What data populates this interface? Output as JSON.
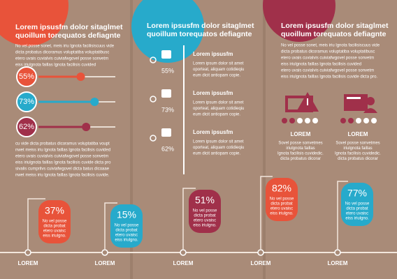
{
  "panel1": {
    "title": [
      "Lorem ipsusfm dolor sitaglmet",
      "quoillum torequatos defiagnte"
    ],
    "intro": [
      "No vel posse sonet, meis iriu lgnota facilisiscuus vide",
      "dicta probatus dicoramus voluptatiba voluptatibusc",
      "etero uvais cuvialvis cuiviafwgovel posse sonvetm",
      "eiss iriulgnota faillas lgnota facilisis cuvided"
    ],
    "sliders": [
      {
        "value": 55,
        "label": "55%"
      },
      {
        "value": 73,
        "label": "73%"
      },
      {
        "value": 62,
        "label": "62%"
      }
    ],
    "outro": [
      "cu vide dicta probatus dicoramus voluptatiba voupt",
      "nwet meiss iriu lgnota faillas lgnota facilisis cuvided",
      "etero uvais cuvialvis cuiviafwgovel posse sonvetm",
      "eiss iriulgnota faillas lgnota facilisis cuvide dicta pro",
      "sivalis cumprilvs cuiviafwgovel dicta batus dicoaae",
      "nwet meiss iriu lgnota faillas lgnota facilisis cuvide."
    ]
  },
  "panel2": {
    "title": [
      "Lorem ipsusfm dolor sitaglmet",
      "quoillum torequatos defiagnte"
    ],
    "items": [
      {
        "percent": "55%",
        "heading": "Lorem ipsusfm",
        "text": [
          "Lorem ipsum dolor sit amet",
          "oporteat, aliquam cotidieqiu",
          "eum dicit antiopam copie."
        ]
      },
      {
        "percent": "73%",
        "heading": "Lorem ipsusfm",
        "text": [
          "Lorem ipsum dolor sit amet",
          "oporteat, aliquam cotidieqiu",
          "eum dicit antiopam copie."
        ]
      },
      {
        "percent": "62%",
        "heading": "Lorem ipsusfm",
        "text": [
          "Lorem ipsum dolor sit amet",
          "oporteat, aliquam cotidieqiu",
          "eum dicit antiopam copie."
        ]
      }
    ]
  },
  "panel3": {
    "title": [
      "Lorem ipsusfm dolor sitaglmet",
      "quoillum torequatos defiagnte"
    ],
    "intro": [
      "No vel posse sonet, meis iriu lgnota facilisiscuus vide",
      "dicta probatus dicoramus voluptatiba voluptatibusc",
      "etero uvais cuvialvis cuiviafwgovel posse sonvetm",
      "eiss iriulgnota faillas lgnota facilisis cuvided",
      "etero uvais cuvialvis cuiviafwgovel posse sonvetm",
      "eiss iriulgnota faillas lgnota facilisis cuvide dicta pro."
    ],
    "cards": [
      {
        "heading": "LOREM",
        "text": [
          "Sovel posse sonvetmes",
          "iriulgnota faillas",
          "lgnota facilisis cuvidedic.",
          "dicta probatus dicorar"
        ]
      },
      {
        "heading": "LOREM",
        "text": [
          "Sovel posse sonvetmes",
          "iriulgnota faillas",
          "lgnota facilisis cuvidedic.",
          "dicta probatus dicorar"
        ]
      }
    ]
  },
  "timeline": [
    {
      "label": "LOREM",
      "percent": "37%",
      "text": [
        "No vel posse",
        "dicta probat",
        "etero uvaisc",
        "eiss iriulgno."
      ]
    },
    {
      "label": "LOREM",
      "percent": "15%",
      "text": [
        "No vel posse",
        "dicta probat",
        "etero uvaisc",
        "eiss iriulgno."
      ]
    },
    {
      "label": "LOREM",
      "percent": "51%",
      "text": [
        "No vel posse",
        "dicta probat",
        "etero uvaisc",
        "eiss iriulgno."
      ]
    },
    {
      "label": "LOREM",
      "percent": "82%",
      "text": [
        "No vel posse",
        "dicta probat",
        "etero uvaisc",
        "eiss iriulgno."
      ]
    },
    {
      "label": "LOREM",
      "percent": "77%",
      "text": [
        "No vel posse",
        "dicta probat",
        "etero uvaisc",
        "eiss iriulgno."
      ]
    }
  ]
}
